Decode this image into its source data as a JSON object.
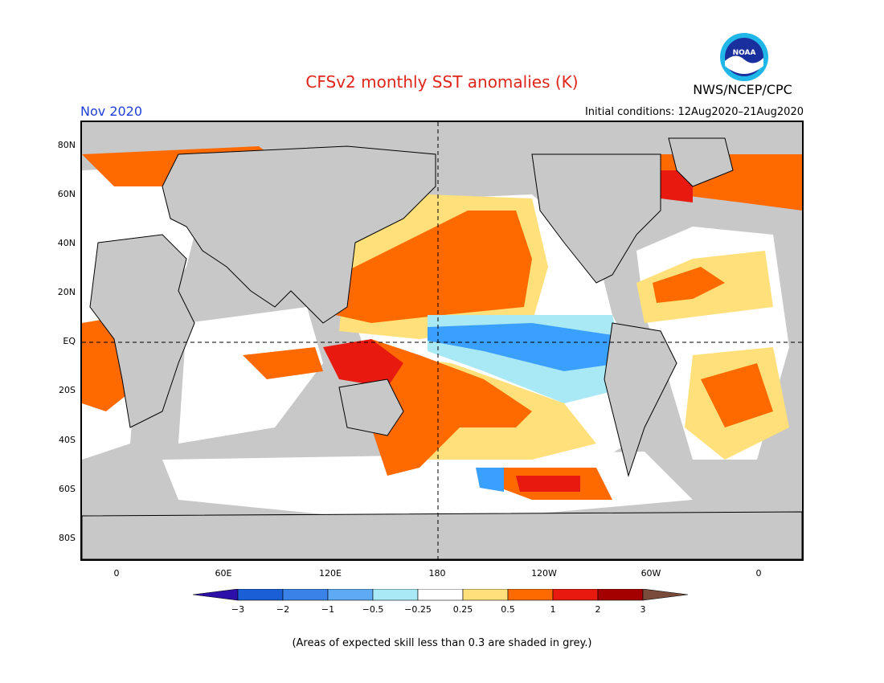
{
  "header": {
    "title": "CFSv2 monthly SST anomalies (K)",
    "month": "Nov 2020",
    "initial_conditions": "Initial conditions: 12Aug2020–21Aug2020",
    "agency": "NWS/NCEP/CPC",
    "logo_text": "NOAA"
  },
  "map": {
    "lat_labels": [
      "80N",
      "60N",
      "40N",
      "20N",
      "EQ",
      "20S",
      "40S",
      "60S",
      "80S"
    ],
    "lon_labels": [
      "0",
      "60E",
      "120E",
      "180",
      "120W",
      "60W",
      "0"
    ],
    "colors": {
      "land": "#c8c8c8",
      "white": "#ffffff",
      "yellow": "#ffe07a",
      "orange": "#ff6a00",
      "red": "#e8190f",
      "darkred": "#a50000",
      "lightblue": "#a9e8f5",
      "blue": "#3aa0ff",
      "midblue": "#2a78e6"
    }
  },
  "colorbar": {
    "labels": [
      "−3",
      "−2",
      "−1",
      "−0.5",
      "−0.25",
      "0.25",
      "0.5",
      "1",
      "2",
      "3"
    ],
    "colors": [
      "#2c0fa8",
      "#1a5fd6",
      "#3a82e8",
      "#5eaaf5",
      "#a9e8f5",
      "#ffffff",
      "#ffe07a",
      "#ff6a00",
      "#e8190f",
      "#a50000",
      "#7a4a3a"
    ]
  },
  "footnote": "(Areas of expected skill less than 0.3 are shaded in grey.)"
}
